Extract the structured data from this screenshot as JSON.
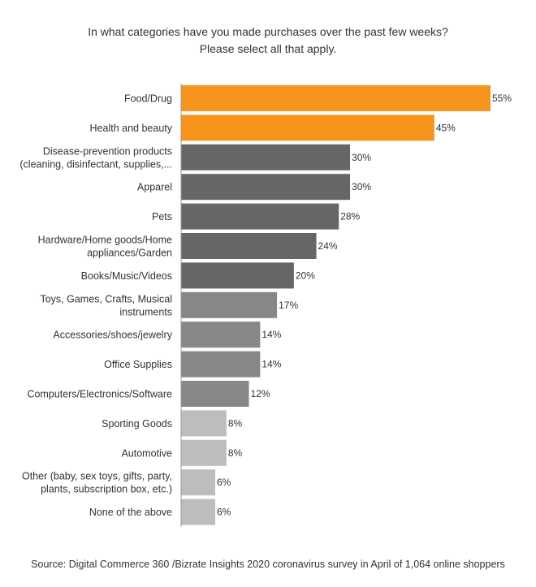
{
  "chart_data": {
    "type": "bar",
    "orientation": "horizontal",
    "title": [
      "In what categories have you made purchases over the past few weeks?",
      "Please select all that apply."
    ],
    "source": "Source: Digital Commerce 360 /Bizrate Insights  2020 coronavirus survey in April of 1,064 online shoppers",
    "xlim": [
      0,
      55
    ],
    "grid": false,
    "legend": "none",
    "value_suffix": "%",
    "categories": [
      [
        "Food/Drug"
      ],
      [
        "Health and beauty"
      ],
      [
        "Disease-prevention products",
        "(cleaning, disinfectant, supplies,..."
      ],
      [
        "Apparel"
      ],
      [
        "Pets"
      ],
      [
        "Hardware/Home goods/Home",
        "appliances/Garden"
      ],
      [
        "Books/Music/Videos"
      ],
      [
        "Toys, Games, Crafts, Musical",
        "instruments"
      ],
      [
        "Accessories/shoes/jewelry"
      ],
      [
        "Office Supplies"
      ],
      [
        "Computers/Electronics/Software"
      ],
      [
        "Sporting Goods"
      ],
      [
        "Automotive"
      ],
      [
        "Other (baby, sex toys, gifts, party,",
        "plants, subscription box, etc.)"
      ],
      [
        "None of the above"
      ]
    ],
    "values": [
      55,
      45,
      30,
      30,
      28,
      24,
      20,
      17,
      14,
      14,
      12,
      8,
      8,
      6,
      6
    ],
    "value_labels": [
      "55%",
      "45%",
      "30%",
      "30%",
      "28%",
      "24%",
      "20%",
      "17%",
      "14%",
      "14%",
      "12%",
      "8%",
      "8%",
      "6%",
      "6%"
    ],
    "bar_colors": [
      "#F7941D",
      "#F7941D",
      "#666666",
      "#666666",
      "#666666",
      "#666666",
      "#666666",
      "#878787",
      "#878787",
      "#878787",
      "#878787",
      "#BDBDBD",
      "#BDBDBD",
      "#BDBDBD",
      "#BDBDBD"
    ],
    "axis_color": "#999999"
  }
}
